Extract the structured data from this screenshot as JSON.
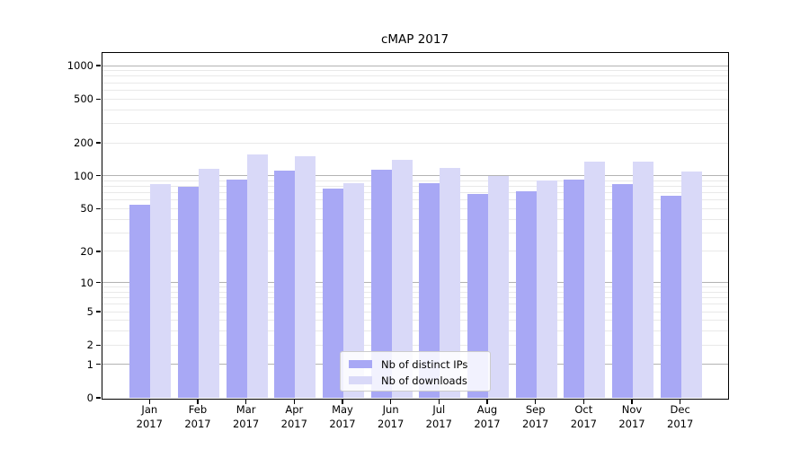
{
  "title": "cMAP 2017",
  "chart_data": {
    "type": "bar",
    "title": "cMAP 2017",
    "categories": [
      "Jan",
      "Feb",
      "Mar",
      "Apr",
      "May",
      "Jun",
      "Jul",
      "Aug",
      "Sep",
      "Oct",
      "Nov",
      "Dec"
    ],
    "year_label": "2017",
    "series": [
      {
        "name": "Nb of distinct IPs",
        "color": "#a8a8f5",
        "values": [
          54,
          79,
          93,
          112,
          76,
          114,
          85,
          68,
          73,
          92,
          84,
          66
        ]
      },
      {
        "name": "Nb of downloads",
        "color": "#d9d9f8",
        "values": [
          84,
          115,
          158,
          151,
          85,
          141,
          119,
          100,
          90,
          136,
          136,
          110
        ]
      }
    ],
    "yscale": "log10(value+1)",
    "ylim": [
      0,
      1300
    ],
    "yticks": [
      0,
      1,
      2,
      5,
      10,
      20,
      50,
      100,
      200,
      500,
      1000
    ],
    "grid": {
      "major_lines": [
        1,
        10,
        100,
        1000
      ],
      "minor_lines": [
        2,
        3,
        4,
        5,
        6,
        7,
        8,
        9,
        20,
        30,
        40,
        50,
        60,
        70,
        80,
        90,
        200,
        300,
        400,
        500,
        600,
        700,
        800,
        900
      ],
      "major_color": "#b3b3b3",
      "minor_color": "#e9e9e9"
    },
    "legend": {
      "position": "bottom-center",
      "entries": [
        "Nb of distinct IPs",
        "Nb of downloads"
      ]
    }
  },
  "colors": {
    "background": "#ffffff",
    "axis": "#000000",
    "bar_ips": "#a8a8f5",
    "bar_downloads": "#d9d9f8"
  }
}
